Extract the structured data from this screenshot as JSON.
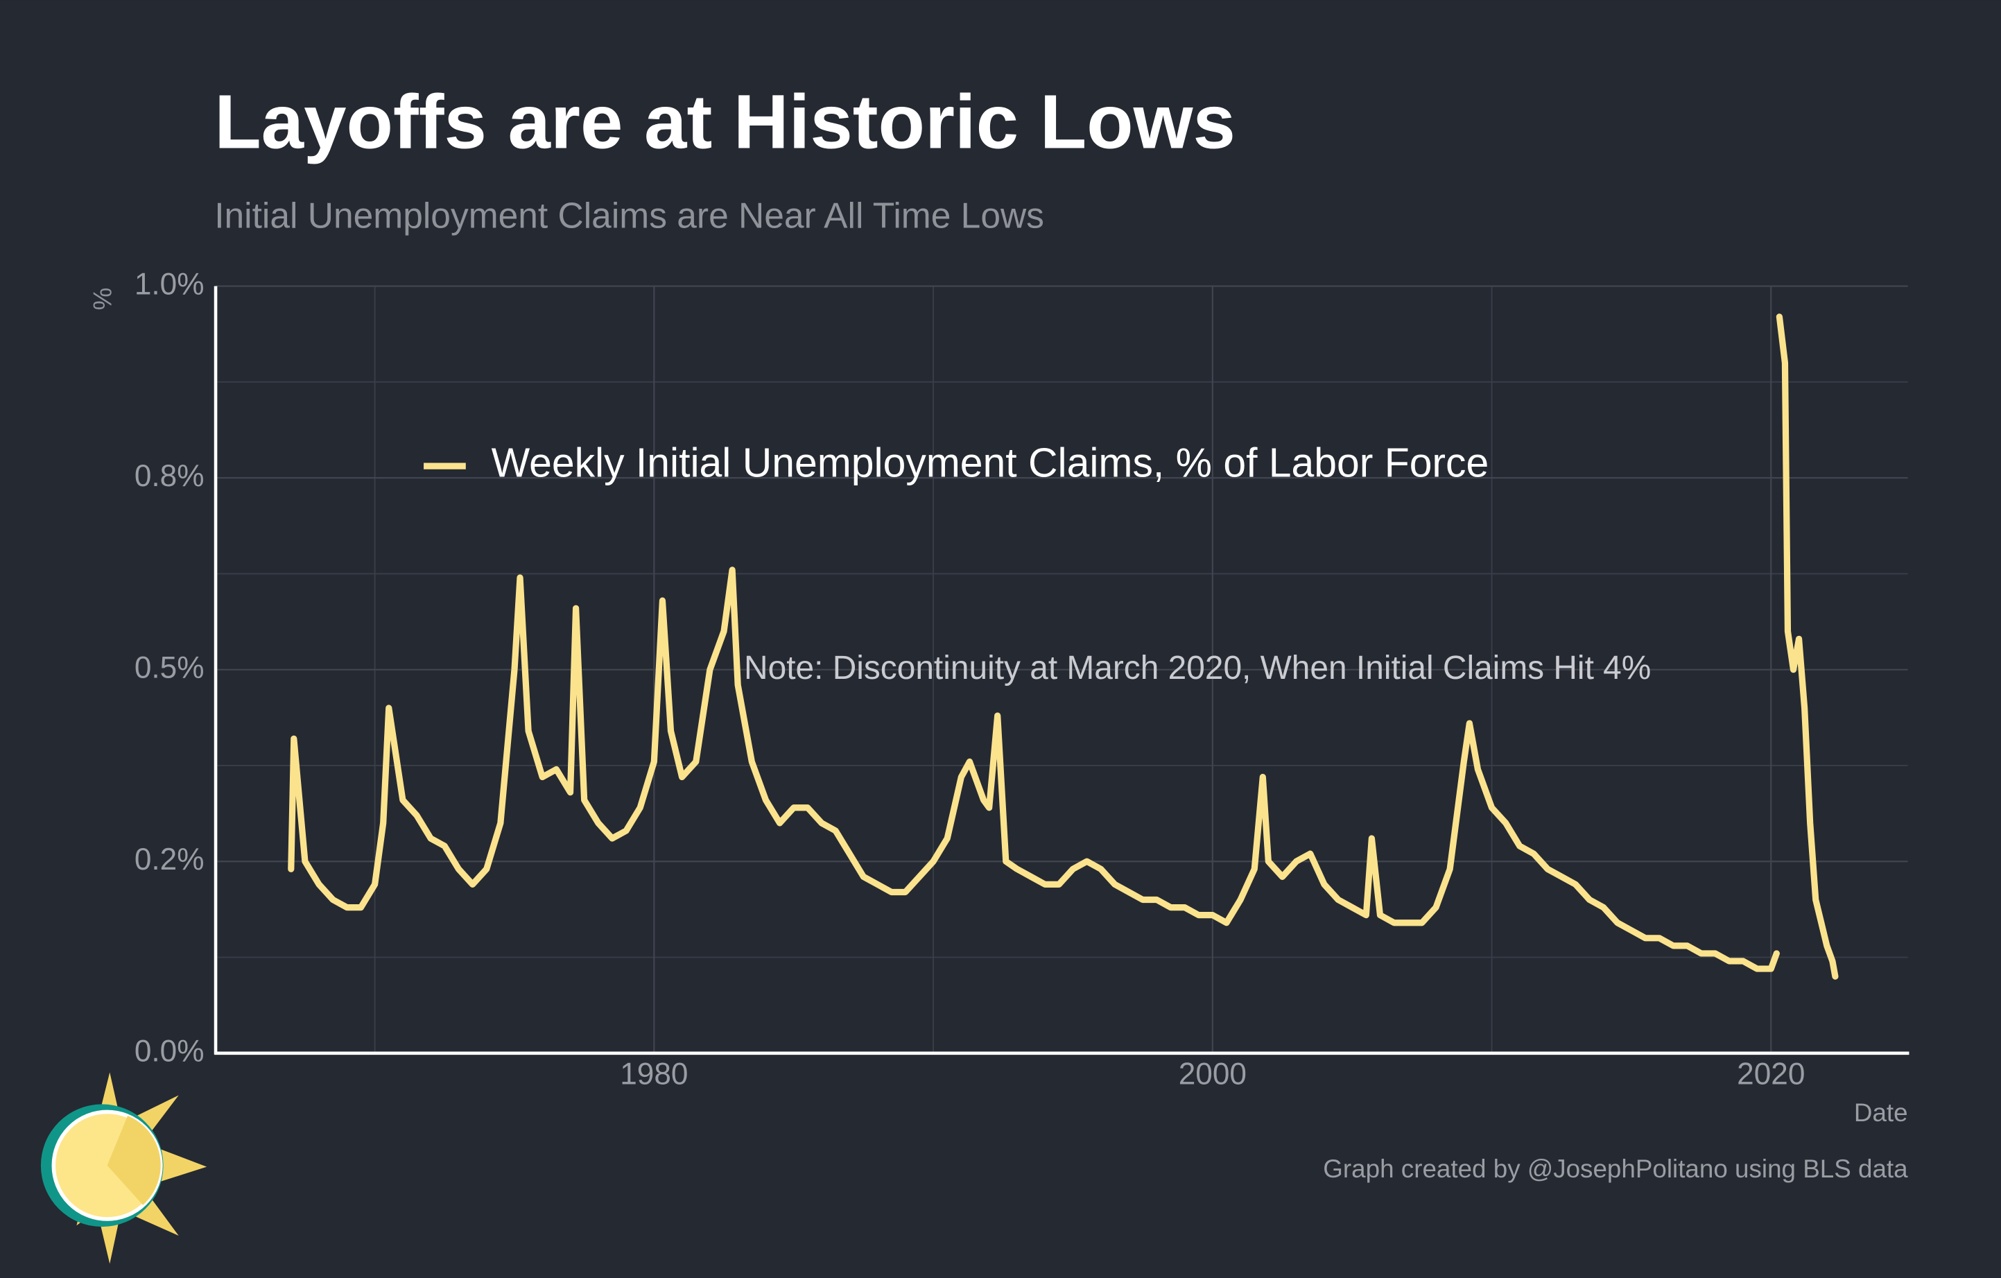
{
  "chart_data": {
    "type": "line",
    "title": "Layoffs are at Historic Lows",
    "subtitle": "Initial Unemployment Claims are Near All Time Lows",
    "y_axis_label": "%",
    "x_axis_label": "Date",
    "annotation": "Note: Discontinuity at March 2020, When Initial Claims Hit 4%",
    "caption": "Graph created by @JosephPolitano using BLS data",
    "grid": true,
    "legend_position": "top-left",
    "xlim": [
      1964.3,
      2024.9
    ],
    "xticks": [
      1980,
      2000,
      2020
    ],
    "x_minor_gridlines": [
      1970,
      1990,
      2010
    ],
    "ylim": [
      0,
      1.0
    ],
    "yticks": [
      {
        "value": 0,
        "label": "0.0%"
      },
      {
        "value": 0.25,
        "label": "0.2%"
      },
      {
        "value": 0.5,
        "label": "0.5%"
      },
      {
        "value": 0.75,
        "label": "0.8%"
      },
      {
        "value": 1.0,
        "label": "1.0%"
      }
    ],
    "y_minor_gridlines": [
      0.125,
      0.375,
      0.625,
      0.875
    ],
    "x": [
      1967.0,
      1967.1,
      1967.5,
      1968.0,
      1968.5,
      1969.0,
      1969.5,
      1970.0,
      1970.3,
      1970.5,
      1971.0,
      1971.5,
      1972.0,
      1972.5,
      1973.0,
      1973.5,
      1974.0,
      1974.5,
      1975.0,
      1975.2,
      1975.5,
      1976.0,
      1976.5,
      1977.0,
      1977.2,
      1977.5,
      1978.0,
      1978.5,
      1979.0,
      1979.5,
      1980.0,
      1980.3,
      1980.6,
      1981.0,
      1981.5,
      1982.0,
      1982.5,
      1982.8,
      1983.0,
      1983.5,
      1984.0,
      1984.5,
      1985.0,
      1985.5,
      1986.0,
      1986.5,
      1987.0,
      1987.5,
      1988.0,
      1988.5,
      1989.0,
      1989.5,
      1990.0,
      1990.5,
      1991.0,
      1991.3,
      1991.8,
      1992.0,
      1992.3,
      1992.6,
      1993.0,
      1993.5,
      1994.0,
      1994.5,
      1995.0,
      1995.5,
      1996.0,
      1996.5,
      1997.0,
      1997.5,
      1998.0,
      1998.5,
      1999.0,
      1999.5,
      2000.0,
      2000.5,
      2001.0,
      2001.5,
      2001.8,
      2002.0,
      2002.5,
      2003.0,
      2003.5,
      2004.0,
      2004.5,
      2005.0,
      2005.5,
      2005.7,
      2006.0,
      2006.5,
      2007.0,
      2007.5,
      2008.0,
      2008.5,
      2009.0,
      2009.2,
      2009.5,
      2010.0,
      2010.5,
      2011.0,
      2011.5,
      2012.0,
      2012.5,
      2013.0,
      2013.5,
      2014.0,
      2014.5,
      2015.0,
      2015.5,
      2016.0,
      2016.5,
      2017.0,
      2017.5,
      2018.0,
      2018.5,
      2019.0,
      2019.5,
      2020.0,
      2020.2,
      2020.25,
      2020.3,
      2020.5,
      2020.6,
      2020.8,
      2021.0,
      2021.2,
      2021.4,
      2021.6,
      2021.8,
      2022.0,
      2022.2,
      2022.3
    ],
    "series": [
      {
        "name": "Weekly Initial Unemployment Claims, % of Labor Force",
        "color": "#fbe38e",
        "values": [
          0.24,
          0.41,
          0.25,
          0.22,
          0.2,
          0.19,
          0.19,
          0.22,
          0.3,
          0.45,
          0.33,
          0.31,
          0.28,
          0.27,
          0.24,
          0.22,
          0.24,
          0.3,
          0.5,
          0.62,
          0.42,
          0.36,
          0.37,
          0.34,
          0.58,
          0.33,
          0.3,
          0.28,
          0.29,
          0.32,
          0.38,
          0.59,
          0.42,
          0.36,
          0.38,
          0.5,
          0.55,
          0.63,
          0.48,
          0.38,
          0.33,
          0.3,
          0.32,
          0.32,
          0.3,
          0.29,
          0.26,
          0.23,
          0.22,
          0.21,
          0.21,
          0.23,
          0.25,
          0.28,
          0.36,
          0.38,
          0.33,
          0.32,
          0.44,
          0.25,
          0.24,
          0.23,
          0.22,
          0.22,
          0.24,
          0.25,
          0.24,
          0.22,
          0.21,
          0.2,
          0.2,
          0.19,
          0.19,
          0.18,
          0.18,
          0.17,
          0.2,
          0.24,
          0.36,
          0.25,
          0.23,
          0.25,
          0.26,
          0.22,
          0.2,
          0.19,
          0.18,
          0.28,
          0.18,
          0.17,
          0.17,
          0.17,
          0.19,
          0.24,
          0.38,
          0.43,
          0.37,
          0.32,
          0.3,
          0.27,
          0.26,
          0.24,
          0.23,
          0.22,
          0.2,
          0.19,
          0.17,
          0.16,
          0.15,
          0.15,
          0.14,
          0.14,
          0.13,
          0.13,
          0.12,
          0.12,
          0.11,
          0.11,
          0.13,
          null,
          0.96,
          0.9,
          0.55,
          0.5,
          0.54,
          0.45,
          0.3,
          0.2,
          0.17,
          0.14,
          0.12,
          0.1
        ]
      }
    ]
  }
}
